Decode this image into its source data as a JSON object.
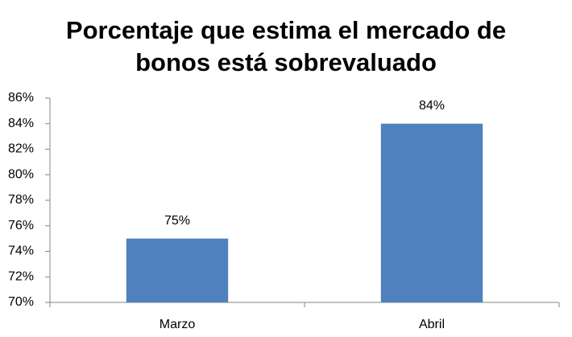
{
  "chart_data": {
    "type": "bar",
    "title": [
      "Porcentaje que estima el mercado de",
      "bonos está sobrevaluado"
    ],
    "categories": [
      "Marzo",
      "Abril"
    ],
    "values": [
      75,
      84
    ],
    "value_labels": [
      "75%",
      "84%"
    ],
    "color": "#4f81bd",
    "ylim": [
      70,
      86
    ],
    "yticks": [
      {
        "value": 70,
        "label": "70%"
      },
      {
        "value": 72,
        "label": "72%"
      },
      {
        "value": 74,
        "label": "74%"
      },
      {
        "value": 76,
        "label": "76%"
      },
      {
        "value": 78,
        "label": "78%"
      },
      {
        "value": 80,
        "label": "80%"
      },
      {
        "value": 82,
        "label": "82%"
      },
      {
        "value": 84,
        "label": "84%"
      },
      {
        "value": 86,
        "label": "86%"
      }
    ],
    "grid": false
  }
}
